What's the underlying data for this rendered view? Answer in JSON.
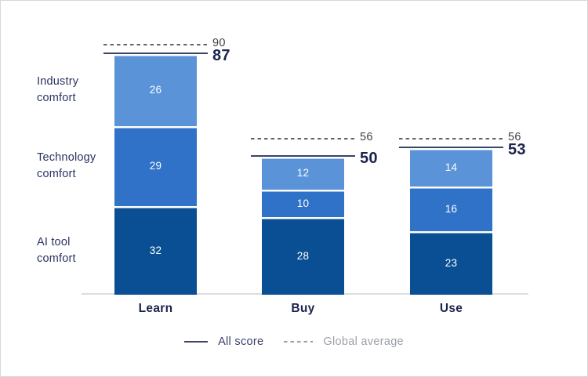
{
  "chart_data": {
    "type": "bar",
    "variant": "stacked-column",
    "title": "",
    "categories": [
      "Learn",
      "Buy",
      "Use"
    ],
    "series": [
      {
        "name": "Industry comfort",
        "color": "#5A93D8",
        "values": [
          26,
          12,
          14
        ]
      },
      {
        "name": "Technology comfort",
        "color": "#2F72C7",
        "values": [
          29,
          10,
          16
        ]
      },
      {
        "name": "AI tool comfort",
        "color": "#0A4F93",
        "values": [
          32,
          28,
          23
        ]
      }
    ],
    "all_score": {
      "label": "All score",
      "values": [
        87,
        50,
        53
      ],
      "line_style": "solid"
    },
    "global_average": {
      "label": "Global average",
      "values": [
        90,
        56,
        56
      ],
      "line_style": "dashed"
    },
    "ylim": [
      0,
      106
    ],
    "grid": false,
    "legend_position": "bottom",
    "value_labels": "white-inside-segments"
  },
  "style": {
    "background": "#FFFFFF",
    "frame_border_color": "#D5D7DA",
    "segment_gap_color": "#FFFFFF",
    "score_line_color": "#3A4463",
    "average_line_color": "#63656B",
    "score_label_color": "#1A234E",
    "average_label_color": "#3E3F44",
    "category_label_color": "#1A234E",
    "row_label_color": "#2A3363",
    "axis_color": "#DCDDE0",
    "legend_all_score_color": "#39406B",
    "legend_average_color": "#9B9FA9"
  }
}
